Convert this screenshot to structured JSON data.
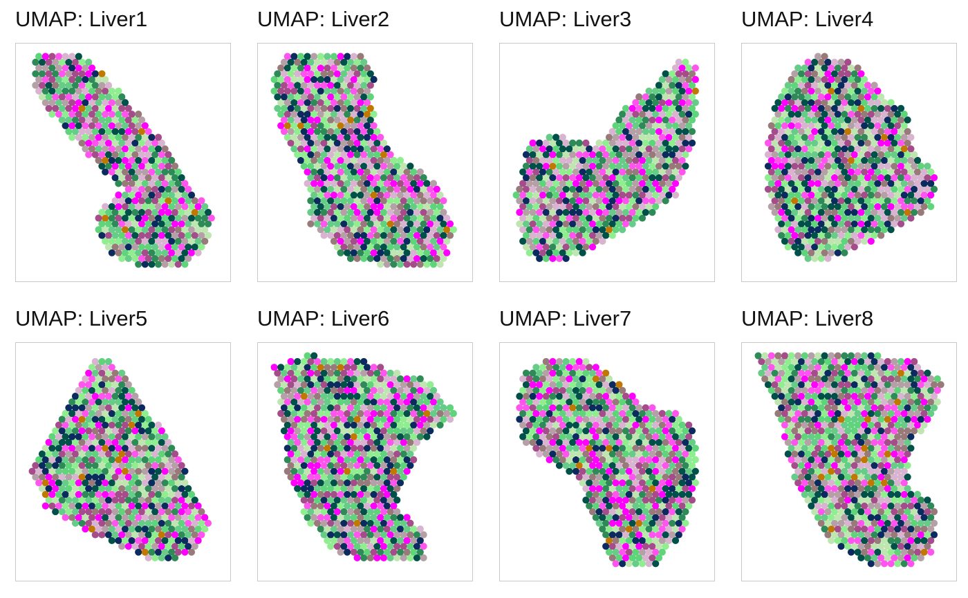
{
  "palette": [
    "#90ee90",
    "#ff00ff",
    "#2e8b57",
    "#00504a",
    "#0b2a5e",
    "#a54c8a",
    "#b5a0a8",
    "#d8b4d0",
    "#5fd47a",
    "#ff55ee",
    "#bfe6b0",
    "#997a7a",
    "#66cc88",
    "#c07800"
  ],
  "chart_data": [
    {
      "type": "scatter",
      "title": "UMAP: Liver1",
      "xlabel": "",
      "ylabel": "",
      "grid": false,
      "legend": "none",
      "xlim": [
        0,
        1
      ],
      "ylim": [
        0,
        1
      ],
      "shape": [
        [
          0.05,
          0.97
        ],
        [
          0.28,
          0.99
        ],
        [
          0.5,
          0.8
        ],
        [
          0.72,
          0.58
        ],
        [
          0.86,
          0.38
        ],
        [
          0.96,
          0.28
        ],
        [
          0.94,
          0.14
        ],
        [
          0.8,
          0.03
        ],
        [
          0.6,
          0.04
        ],
        [
          0.42,
          0.09
        ],
        [
          0.35,
          0.2
        ],
        [
          0.38,
          0.3
        ],
        [
          0.5,
          0.38
        ],
        [
          0.3,
          0.55
        ],
        [
          0.12,
          0.72
        ],
        [
          0.04,
          0.85
        ]
      ]
    },
    {
      "type": "scatter",
      "title": "UMAP: Liver2",
      "xlabel": "",
      "ylabel": "",
      "grid": false,
      "legend": "none",
      "xlim": [
        0,
        1
      ],
      "ylim": [
        0,
        1
      ],
      "shape": [
        [
          0.1,
          0.97
        ],
        [
          0.5,
          0.98
        ],
        [
          0.55,
          0.9
        ],
        [
          0.53,
          0.75
        ],
        [
          0.63,
          0.55
        ],
        [
          0.85,
          0.42
        ],
        [
          0.97,
          0.22
        ],
        [
          0.9,
          0.05
        ],
        [
          0.7,
          0.03
        ],
        [
          0.4,
          0.08
        ],
        [
          0.22,
          0.22
        ],
        [
          0.2,
          0.45
        ],
        [
          0.12,
          0.55
        ],
        [
          0.05,
          0.7
        ],
        [
          0.02,
          0.85
        ]
      ]
    },
    {
      "type": "scatter",
      "title": "UMAP: Liver3",
      "xlabel": "",
      "ylabel": "",
      "grid": false,
      "legend": "none",
      "xlim": [
        0,
        1
      ],
      "ylim": [
        0,
        1
      ],
      "shape": [
        [
          0.03,
          0.35
        ],
        [
          0.1,
          0.6
        ],
        [
          0.25,
          0.62
        ],
        [
          0.45,
          0.58
        ],
        [
          0.6,
          0.75
        ],
        [
          0.75,
          0.85
        ],
        [
          0.88,
          0.97
        ],
        [
          0.96,
          0.92
        ],
        [
          0.95,
          0.6
        ],
        [
          0.85,
          0.35
        ],
        [
          0.6,
          0.2
        ],
        [
          0.4,
          0.1
        ],
        [
          0.2,
          0.05
        ],
        [
          0.06,
          0.12
        ]
      ]
    },
    {
      "type": "scatter",
      "title": "UMAP: Liver4",
      "xlabel": "",
      "ylabel": "",
      "grid": false,
      "legend": "none",
      "xlim": [
        0,
        1
      ],
      "ylim": [
        0,
        1
      ],
      "shape": [
        [
          0.08,
          0.6
        ],
        [
          0.12,
          0.75
        ],
        [
          0.2,
          0.9
        ],
        [
          0.35,
          0.98
        ],
        [
          0.55,
          0.93
        ],
        [
          0.65,
          0.82
        ],
        [
          0.8,
          0.72
        ],
        [
          0.83,
          0.55
        ],
        [
          0.95,
          0.45
        ],
        [
          0.92,
          0.3
        ],
        [
          0.68,
          0.18
        ],
        [
          0.5,
          0.1
        ],
        [
          0.3,
          0.05
        ],
        [
          0.15,
          0.15
        ],
        [
          0.1,
          0.3
        ],
        [
          0.07,
          0.45
        ]
      ]
    },
    {
      "type": "scatter",
      "title": "UMAP: Liver5",
      "xlabel": "",
      "ylabel": "",
      "grid": false,
      "legend": "none",
      "xlim": [
        0,
        1
      ],
      "ylim": [
        0,
        1
      ],
      "shape": [
        [
          0.03,
          0.45
        ],
        [
          0.1,
          0.6
        ],
        [
          0.25,
          0.8
        ],
        [
          0.35,
          0.97
        ],
        [
          0.45,
          0.95
        ],
        [
          0.6,
          0.75
        ],
        [
          0.75,
          0.6
        ],
        [
          0.85,
          0.4
        ],
        [
          0.95,
          0.22
        ],
        [
          0.85,
          0.1
        ],
        [
          0.7,
          0.05
        ],
        [
          0.5,
          0.12
        ],
        [
          0.3,
          0.2
        ],
        [
          0.1,
          0.3
        ]
      ]
    },
    {
      "type": "scatter",
      "title": "UMAP: Liver6",
      "xlabel": "",
      "ylabel": "",
      "grid": false,
      "legend": "none",
      "xlim": [
        0,
        1
      ],
      "ylim": [
        0,
        1
      ],
      "shape": [
        [
          0.03,
          0.92
        ],
        [
          0.2,
          0.97
        ],
        [
          0.45,
          0.96
        ],
        [
          0.65,
          0.9
        ],
        [
          0.85,
          0.85
        ],
        [
          0.97,
          0.7
        ],
        [
          0.8,
          0.6
        ],
        [
          0.72,
          0.45
        ],
        [
          0.65,
          0.3
        ],
        [
          0.8,
          0.2
        ],
        [
          0.8,
          0.07
        ],
        [
          0.55,
          0.05
        ],
        [
          0.35,
          0.1
        ],
        [
          0.2,
          0.25
        ],
        [
          0.1,
          0.45
        ],
        [
          0.08,
          0.65
        ],
        [
          0.05,
          0.8
        ]
      ]
    },
    {
      "type": "scatter",
      "title": "UMAP: Liver7",
      "xlabel": "",
      "ylabel": "",
      "grid": false,
      "legend": "none",
      "xlim": [
        0,
        1
      ],
      "ylim": [
        0,
        1
      ],
      "shape": [
        [
          0.06,
          0.88
        ],
        [
          0.2,
          0.95
        ],
        [
          0.4,
          0.96
        ],
        [
          0.55,
          0.85
        ],
        [
          0.7,
          0.75
        ],
        [
          0.85,
          0.72
        ],
        [
          0.95,
          0.65
        ],
        [
          0.96,
          0.4
        ],
        [
          0.9,
          0.2
        ],
        [
          0.75,
          0.05
        ],
        [
          0.55,
          0.03
        ],
        [
          0.45,
          0.2
        ],
        [
          0.35,
          0.42
        ],
        [
          0.2,
          0.5
        ],
        [
          0.06,
          0.6
        ],
        [
          0.04,
          0.75
        ]
      ]
    },
    {
      "type": "scatter",
      "title": "UMAP: Liver8",
      "xlabel": "",
      "ylabel": "",
      "grid": false,
      "legend": "none",
      "xlim": [
        0,
        1
      ],
      "ylim": [
        0,
        1
      ],
      "shape": [
        [
          0.03,
          0.97
        ],
        [
          0.3,
          0.98
        ],
        [
          0.6,
          0.98
        ],
        [
          0.85,
          0.94
        ],
        [
          0.98,
          0.85
        ],
        [
          0.95,
          0.7
        ],
        [
          0.83,
          0.6
        ],
        [
          0.8,
          0.4
        ],
        [
          0.95,
          0.3
        ],
        [
          0.93,
          0.1
        ],
        [
          0.8,
          0.03
        ],
        [
          0.6,
          0.05
        ],
        [
          0.4,
          0.15
        ],
        [
          0.25,
          0.35
        ],
        [
          0.18,
          0.55
        ],
        [
          0.12,
          0.75
        ],
        [
          0.05,
          0.88
        ]
      ]
    }
  ]
}
